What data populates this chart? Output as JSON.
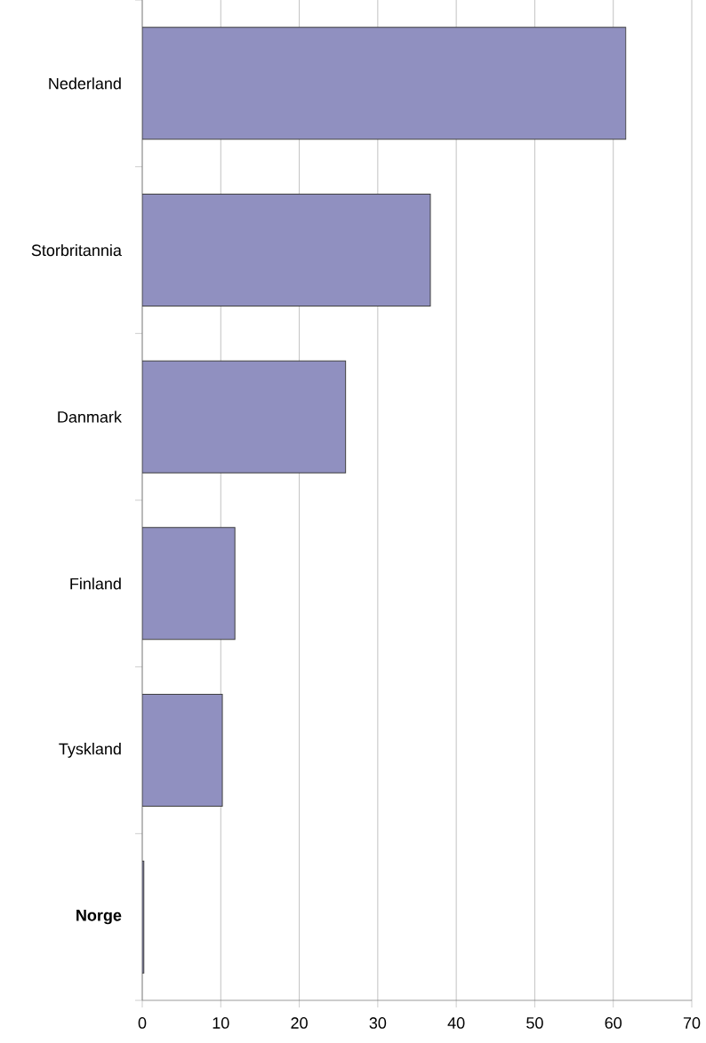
{
  "chart_data": {
    "type": "bar",
    "orientation": "horizontal",
    "categories": [
      "Nederland",
      "Storbritannia",
      "Danmark",
      "Finland",
      "Tyskland",
      "**Norge**"
    ],
    "values": [
      61.6,
      36.7,
      25.9,
      11.8,
      10.2,
      0.2
    ],
    "color": "#9090c0",
    "xlim": [
      0,
      70
    ],
    "xticks": [
      0,
      10,
      20,
      30,
      40,
      50,
      60,
      70
    ],
    "grid": "x"
  }
}
